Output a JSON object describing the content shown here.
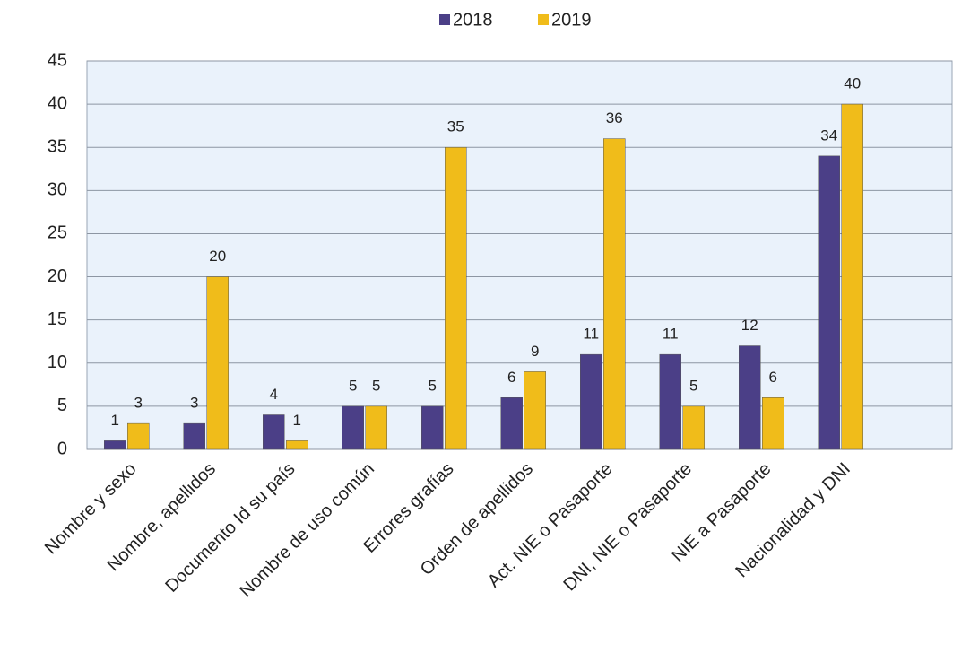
{
  "chart_data": {
    "type": "bar",
    "categories": [
      "Nombre y sexo",
      "Nombre, apellidos",
      "Documento Id su país",
      "Nombre de uso común",
      "Errores grafías",
      "Orden de apellidos",
      "Act. NIE o Pasaporte",
      "DNI, NIE o Pasaporte",
      "NIE a Pasaporte",
      "Nacionalidad y DNI"
    ],
    "series": [
      {
        "name": "2018",
        "color": "#4b3f87",
        "values": [
          1,
          3,
          4,
          5,
          5,
          6,
          11,
          11,
          12,
          34
        ]
      },
      {
        "name": "2019",
        "color": "#f0bc1a",
        "values": [
          3,
          20,
          1,
          5,
          35,
          9,
          36,
          5,
          6,
          40
        ]
      }
    ],
    "ylim": [
      0,
      45
    ],
    "yticks": [
      0,
      5,
      10,
      15,
      20,
      25,
      30,
      35,
      40,
      45
    ],
    "grid": true,
    "legend": "top"
  }
}
